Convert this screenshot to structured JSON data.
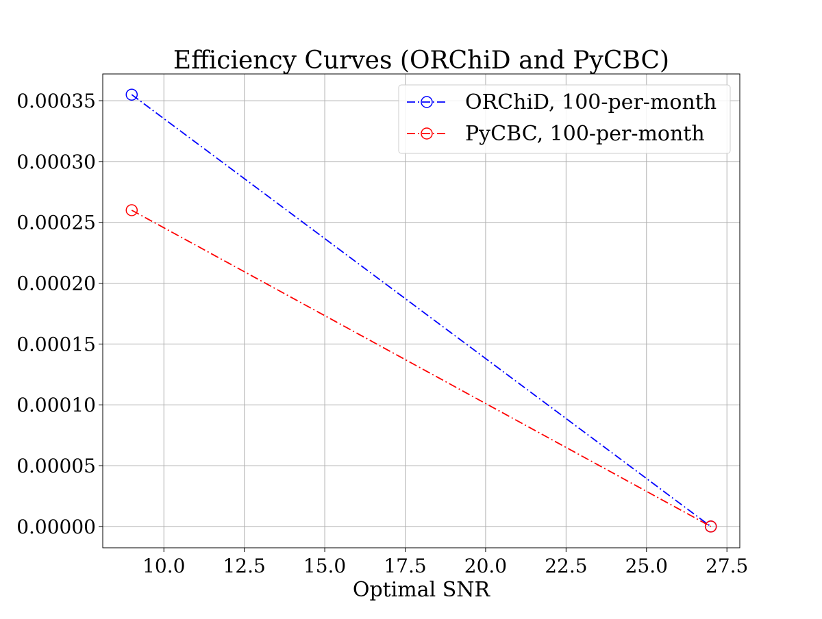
{
  "chart_data": {
    "type": "line",
    "title": "Efficiency Curves (ORChiD and PyCBC)",
    "xlabel": "Optimal SNR",
    "ylabel": "",
    "xlim": [
      8.1,
      27.9
    ],
    "ylim": [
      -1.75e-05,
      0.000372
    ],
    "x_ticks": [
      10.0,
      12.5,
      15.0,
      17.5,
      20.0,
      22.5,
      25.0,
      27.5
    ],
    "x_tick_labels": [
      "10.0",
      "12.5",
      "15.0",
      "17.5",
      "20.0",
      "22.5",
      "25.0",
      "27.5"
    ],
    "y_ticks": [
      0.0,
      5e-05,
      0.0001,
      0.00015,
      0.0002,
      0.00025,
      0.0003,
      0.00035
    ],
    "y_tick_labels": [
      "0.00000",
      "0.00005",
      "0.00010",
      "0.00015",
      "0.00020",
      "0.00025",
      "0.00030",
      "0.00035"
    ],
    "grid": true,
    "legend_position": "upper-right",
    "series": [
      {
        "name": "ORChiD, 100-per-month",
        "color": "#0000ff",
        "line_style": "dash-dot",
        "marker": "open-circle",
        "x": [
          9.0,
          27.0
        ],
        "y": [
          0.000355,
          0.0
        ]
      },
      {
        "name": "PyCBC, 100-per-month",
        "color": "#ff0000",
        "line_style": "dash-dot",
        "marker": "open-circle",
        "x": [
          9.0,
          27.0
        ],
        "y": [
          0.00026,
          0.0
        ]
      }
    ]
  }
}
